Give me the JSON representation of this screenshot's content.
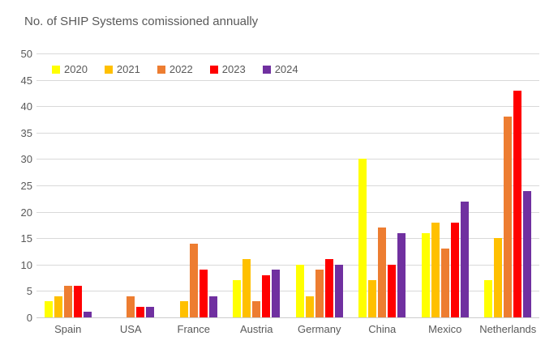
{
  "title": "No. of SHIP Systems comissioned annually",
  "colors": {
    "text": "#595959",
    "gridline": "#d9d9d9",
    "background": "#ffffff"
  },
  "chart_data": {
    "type": "bar",
    "title": "No. of SHIP Systems comissioned annually",
    "categories": [
      "Spain",
      "USA",
      "France",
      "Austria",
      "Germany",
      "China",
      "Mexico",
      "Netherlands"
    ],
    "series": [
      {
        "name": "2020",
        "color": "#FFFF00",
        "values": [
          3,
          0,
          0,
          7,
          10,
          30,
          16,
          7
        ]
      },
      {
        "name": "2021",
        "color": "#FFC000",
        "values": [
          4,
          0,
          3,
          11,
          4,
          7,
          18,
          15
        ]
      },
      {
        "name": "2022",
        "color": "#ED7D31",
        "values": [
          6,
          4,
          14,
          3,
          9,
          17,
          13,
          38
        ]
      },
      {
        "name": "2023",
        "color": "#FF0000",
        "values": [
          6,
          2,
          9,
          8,
          11,
          10,
          18,
          43
        ]
      },
      {
        "name": "2024",
        "color": "#7030A0",
        "values": [
          1,
          2,
          4,
          9,
          10,
          16,
          22,
          24
        ]
      }
    ],
    "xlabel": "",
    "ylabel": "",
    "ylim": [
      0,
      50
    ],
    "ytick_step": 5,
    "grid": true,
    "legend_position": "top-left-inside"
  }
}
